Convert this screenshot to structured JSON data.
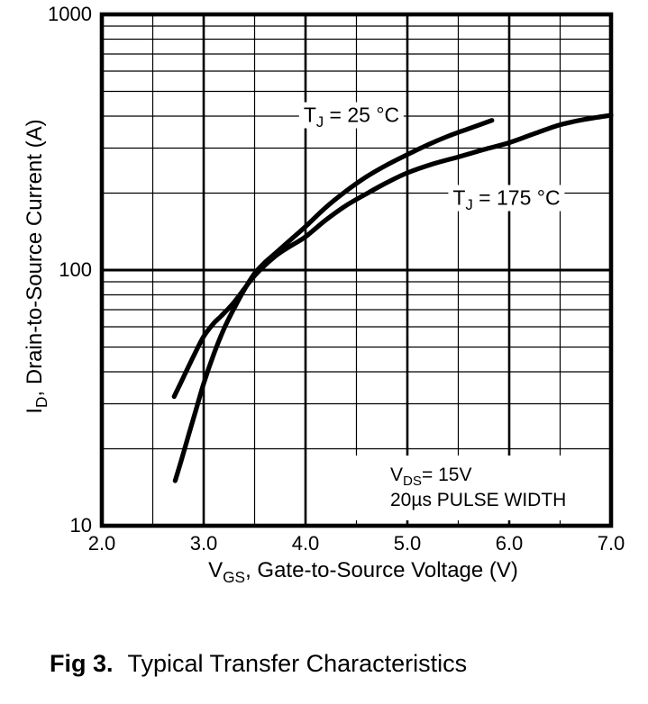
{
  "figure": {
    "caption_bold": "Fig 3.",
    "caption_text": "Typical Transfer Characteristics"
  },
  "chart_data": {
    "type": "line",
    "title": "",
    "grid": "on",
    "colors": {
      "line": "#000000",
      "grid": "#000000",
      "text": "#000000",
      "background": "#ffffff"
    },
    "x_axis": {
      "label_pre": "V",
      "label_sub": "GS",
      "label_post": ", Gate-to-Source Voltage (V)",
      "scale": "linear",
      "min": 2.0,
      "max": 7.0,
      "major_ticks": [
        {
          "v": 2.0,
          "label": "2.0"
        },
        {
          "v": 3.0,
          "label": "3.0"
        },
        {
          "v": 4.0,
          "label": "4.0"
        },
        {
          "v": 5.0,
          "label": "5.0"
        },
        {
          "v": 6.0,
          "label": "6.0"
        },
        {
          "v": 7.0,
          "label": "7.0"
        }
      ],
      "major_inner_gridlines": [
        3.0,
        4.0,
        5.0,
        6.0
      ],
      "minor_gridlines": [
        2.5,
        3.5,
        4.5,
        5.5,
        6.5
      ]
    },
    "y_axis": {
      "label_pre": "I",
      "label_sub": "D",
      "label_post": ",  Drain-to-Source Current (A)",
      "scale": "log",
      "min": 10,
      "max": 1000,
      "major_ticks": [
        {
          "v": 10,
          "label": "10"
        },
        {
          "v": 100,
          "label": "100"
        },
        {
          "v": 1000,
          "label": "1000"
        }
      ],
      "major_inner_gridlines": [
        100
      ],
      "minor_gridlines": [
        20,
        30,
        40,
        50,
        60,
        70,
        80,
        90,
        200,
        300,
        400,
        500,
        600,
        700,
        800,
        900
      ]
    },
    "series": [
      {
        "name_pre": "T",
        "name_sub": "J",
        "name_post": " = 25 °C",
        "points": [
          [
            2.72,
            15
          ],
          [
            2.78,
            18
          ],
          [
            2.85,
            22.5
          ],
          [
            2.92,
            28
          ],
          [
            3.0,
            36
          ],
          [
            3.1,
            47
          ],
          [
            3.2,
            59
          ],
          [
            3.3,
            71
          ],
          [
            3.4,
            84
          ],
          [
            3.5,
            97
          ],
          [
            3.6,
            107
          ],
          [
            3.7,
            116
          ],
          [
            3.85,
            131
          ],
          [
            4.0,
            148
          ],
          [
            4.2,
            176
          ],
          [
            4.4,
            204
          ],
          [
            4.6,
            232
          ],
          [
            4.8,
            258
          ],
          [
            5.0,
            283
          ],
          [
            5.2,
            309
          ],
          [
            5.4,
            334
          ],
          [
            5.6,
            357
          ],
          [
            5.83,
            385
          ]
        ]
      },
      {
        "name_pre": "T",
        "name_sub": "J",
        "name_post": " = 175 °C",
        "points": [
          [
            2.71,
            32
          ],
          [
            2.8,
            38
          ],
          [
            2.9,
            46
          ],
          [
            3.0,
            55
          ],
          [
            3.1,
            62
          ],
          [
            3.17,
            66
          ],
          [
            3.3,
            75
          ],
          [
            3.5,
            95
          ],
          [
            3.7,
            113
          ],
          [
            3.85,
            124
          ],
          [
            4.0,
            135
          ],
          [
            4.2,
            157
          ],
          [
            4.4,
            179
          ],
          [
            4.6,
            199
          ],
          [
            4.8,
            220
          ],
          [
            5.0,
            240
          ],
          [
            5.25,
            260
          ],
          [
            5.5,
            277
          ],
          [
            5.75,
            296
          ],
          [
            6.0,
            315
          ],
          [
            6.25,
            342
          ],
          [
            6.5,
            370
          ],
          [
            6.75,
            389
          ],
          [
            7.0,
            403
          ]
        ]
      }
    ],
    "annotation": {
      "line1_pre": "V",
      "line1_sub": "DS",
      "line1_post": "= 15V",
      "line2": "20µs PULSE WIDTH"
    }
  }
}
